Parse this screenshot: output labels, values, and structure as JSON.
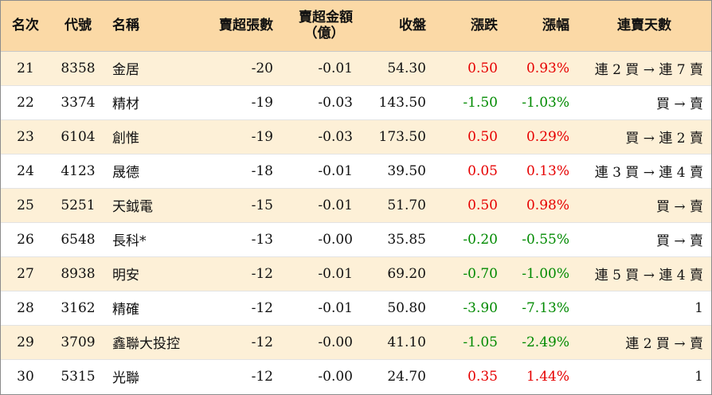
{
  "columns": {
    "rank": "名次",
    "code": "代號",
    "name": "名稱",
    "sell_lots": "賣超張數",
    "sell_amount_line1": "賣超金額",
    "sell_amount_line2": "（億）",
    "close": "收盤",
    "change": "漲跌",
    "change_pct": "漲幅",
    "consecutive_days": "連賣天數"
  },
  "rows": [
    {
      "rank": "21",
      "code": "8358",
      "name": "金居",
      "sell_lots": "-20",
      "sell_amount": "-0.01",
      "close": "54.30",
      "change": "0.50",
      "change_pct": "0.93%",
      "consecutive_days": "連 2 買 → 連 7 賣",
      "direction": "up"
    },
    {
      "rank": "22",
      "code": "3374",
      "name": "精材",
      "sell_lots": "-19",
      "sell_amount": "-0.03",
      "close": "143.50",
      "change": "-1.50",
      "change_pct": "-1.03%",
      "consecutive_days": "買 → 賣",
      "direction": "down"
    },
    {
      "rank": "23",
      "code": "6104",
      "name": "創惟",
      "sell_lots": "-19",
      "sell_amount": "-0.03",
      "close": "173.50",
      "change": "0.50",
      "change_pct": "0.29%",
      "consecutive_days": "買 → 連 2 賣",
      "direction": "up"
    },
    {
      "rank": "24",
      "code": "4123",
      "name": "晟德",
      "sell_lots": "-18",
      "sell_amount": "-0.01",
      "close": "39.50",
      "change": "0.05",
      "change_pct": "0.13%",
      "consecutive_days": "連 3 買 → 連 4 賣",
      "direction": "up"
    },
    {
      "rank": "25",
      "code": "5251",
      "name": "天鉞電",
      "sell_lots": "-15",
      "sell_amount": "-0.01",
      "close": "51.70",
      "change": "0.50",
      "change_pct": "0.98%",
      "consecutive_days": "買 → 賣",
      "direction": "up"
    },
    {
      "rank": "26",
      "code": "6548",
      "name": "長科*",
      "sell_lots": "-13",
      "sell_amount": "-0.00",
      "close": "35.85",
      "change": "-0.20",
      "change_pct": "-0.55%",
      "consecutive_days": "買 → 賣",
      "direction": "down"
    },
    {
      "rank": "27",
      "code": "8938",
      "name": "明安",
      "sell_lots": "-12",
      "sell_amount": "-0.01",
      "close": "69.20",
      "change": "-0.70",
      "change_pct": "-1.00%",
      "consecutive_days": "連 5 買 → 連 4 賣",
      "direction": "down"
    },
    {
      "rank": "28",
      "code": "3162",
      "name": "精確",
      "sell_lots": "-12",
      "sell_amount": "-0.01",
      "close": "50.80",
      "change": "-3.90",
      "change_pct": "-7.13%",
      "consecutive_days": "1",
      "direction": "down"
    },
    {
      "rank": "29",
      "code": "3709",
      "name": "鑫聯大投控",
      "sell_lots": "-12",
      "sell_amount": "-0.00",
      "close": "41.10",
      "change": "-1.05",
      "change_pct": "-2.49%",
      "consecutive_days": "連 2 買 → 賣",
      "direction": "down"
    },
    {
      "rank": "30",
      "code": "5315",
      "name": "光聯",
      "sell_lots": "-12",
      "sell_amount": "-0.00",
      "close": "24.70",
      "change": "0.35",
      "change_pct": "1.44%",
      "consecutive_days": "1",
      "direction": "up"
    }
  ],
  "colors": {
    "header_bg": "#fbd9a6",
    "alt_row_bg": "#fdf0d7",
    "up": "#e60000",
    "down": "#008a00"
  }
}
